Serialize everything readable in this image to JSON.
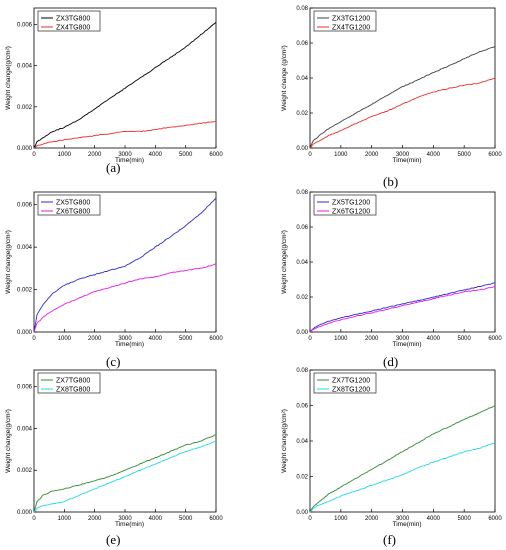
{
  "chart_data": [
    {
      "panel": "(a)",
      "type": "line",
      "xlabel": "Time(min)",
      "ylabel": "Weight change(g/cm²)",
      "xlim": [
        0,
        6000
      ],
      "ylim": [
        0,
        0.0068
      ],
      "xticks": [
        "0",
        "1000",
        "2000",
        "3000",
        "4000",
        "5000",
        "6000"
      ],
      "yticks": [
        0,
        0.002,
        0.004,
        0.006
      ],
      "ytick_labels": [
        "0.000",
        "0.002",
        "0.004",
        "0.006"
      ],
      "legend": "top-left",
      "series": [
        {
          "name": "ZX3TG800",
          "color": "#000000",
          "x": [
            0,
            100,
            300,
            600,
            1000,
            1500,
            2000,
            2500,
            3000,
            3500,
            4000,
            4500,
            5000,
            5500,
            6000
          ],
          "y": [
            0,
            0.0003,
            0.0005,
            0.0008,
            0.001,
            0.0014,
            0.0019,
            0.0024,
            0.0029,
            0.0034,
            0.0039,
            0.0044,
            0.0049,
            0.0055,
            0.0061
          ]
        },
        {
          "name": "ZX4TG800",
          "color": "#e8302c",
          "x": [
            0,
            100,
            300,
            600,
            1000,
            1500,
            2000,
            2500,
            3000,
            3500,
            4000,
            4500,
            5000,
            5500,
            6000
          ],
          "y": [
            0,
            0.0001,
            0.0002,
            0.0003,
            0.0004,
            0.0005,
            0.0006,
            0.0007,
            0.0008,
            0.0008,
            0.0009,
            0.001,
            0.0011,
            0.0012,
            0.0013
          ]
        }
      ]
    },
    {
      "panel": "(b)",
      "type": "line",
      "xlabel": "Time(min)",
      "ylabel": "Weight change (g/cm²)",
      "xlim": [
        0,
        6000
      ],
      "ylim": [
        0,
        0.08
      ],
      "xticks": [
        "0",
        "1000",
        "2000",
        "3000",
        "4000",
        "5000",
        "6000"
      ],
      "yticks": [
        0,
        0.02,
        0.04,
        0.06,
        0.08
      ],
      "ytick_labels": [
        "0.00",
        "0.02",
        "0.04",
        "0.06",
        "0.08"
      ],
      "legend": "top-left",
      "series": [
        {
          "name": "ZX3TG1200",
          "color": "#404040",
          "x": [
            0,
            100,
            300,
            600,
            1000,
            1500,
            2000,
            2500,
            3000,
            3500,
            4000,
            4500,
            5000,
            5500,
            6000
          ],
          "y": [
            0,
            0.004,
            0.007,
            0.011,
            0.015,
            0.02,
            0.025,
            0.03,
            0.035,
            0.039,
            0.043,
            0.047,
            0.051,
            0.055,
            0.058
          ]
        },
        {
          "name": "ZX4TG1200",
          "color": "#e8302c",
          "x": [
            0,
            100,
            300,
            600,
            1000,
            1500,
            2000,
            2500,
            3000,
            3500,
            4000,
            4500,
            5000,
            5500,
            6000
          ],
          "y": [
            0,
            0.002,
            0.004,
            0.007,
            0.01,
            0.014,
            0.018,
            0.021,
            0.025,
            0.029,
            0.032,
            0.034,
            0.036,
            0.037,
            0.04
          ]
        }
      ]
    },
    {
      "panel": "(c)",
      "type": "line",
      "xlabel": "Time(min)",
      "ylabel": "Weight change(g/cm²)",
      "xlim": [
        0,
        6000
      ],
      "ylim": [
        0,
        0.0066
      ],
      "xticks": [
        "0",
        "1000",
        "2000",
        "3000",
        "4000",
        "5000",
        "6000"
      ],
      "yticks": [
        0,
        0.002,
        0.004,
        0.006
      ],
      "ytick_labels": [
        "0.000",
        "0.002",
        "0.004",
        "0.006"
      ],
      "legend": "top-left",
      "series": [
        {
          "name": "ZX5TG800",
          "color": "#2b2bd6",
          "x": [
            0,
            100,
            300,
            600,
            1000,
            1500,
            2000,
            2500,
            3000,
            3500,
            4000,
            4500,
            5000,
            5500,
            6000
          ],
          "y": [
            0,
            0.0008,
            0.0013,
            0.0018,
            0.0022,
            0.0025,
            0.0027,
            0.0029,
            0.0031,
            0.0035,
            0.004,
            0.0045,
            0.005,
            0.0056,
            0.0063
          ]
        },
        {
          "name": "ZX6TG800",
          "color": "#e61ae6",
          "x": [
            0,
            100,
            300,
            600,
            1000,
            1500,
            2000,
            2500,
            3000,
            3500,
            4000,
            4500,
            5000,
            5500,
            6000
          ],
          "y": [
            0,
            0.0004,
            0.0007,
            0.001,
            0.0013,
            0.0016,
            0.0019,
            0.0021,
            0.0023,
            0.0025,
            0.0026,
            0.0028,
            0.0029,
            0.003,
            0.0032
          ]
        }
      ]
    },
    {
      "panel": "(d)",
      "type": "line",
      "xlabel": "Time(min)",
      "ylabel": "Weight change(g/cm²)",
      "xlim": [
        0,
        6000
      ],
      "ylim": [
        0,
        0.08
      ],
      "xticks": [
        "0",
        "1000",
        "2000",
        "3000",
        "4000",
        "5000",
        "6000"
      ],
      "yticks": [
        0,
        0.02,
        0.04,
        0.06,
        0.08
      ],
      "ytick_labels": [
        "0.00",
        "0.02",
        "0.04",
        "0.06",
        "0.08"
      ],
      "legend": "top-left",
      "series": [
        {
          "name": "ZX5TG1200",
          "color": "#2b2bd6",
          "x": [
            0,
            100,
            300,
            600,
            1000,
            1500,
            2000,
            2500,
            3000,
            3500,
            4000,
            4500,
            5000,
            5500,
            6000
          ],
          "y": [
            0,
            0.002,
            0.004,
            0.006,
            0.008,
            0.01,
            0.012,
            0.014,
            0.016,
            0.018,
            0.02,
            0.022,
            0.024,
            0.026,
            0.028
          ]
        },
        {
          "name": "ZX6TG1200",
          "color": "#e61ae6",
          "x": [
            0,
            100,
            300,
            600,
            1000,
            1500,
            2000,
            2500,
            3000,
            3500,
            4000,
            4500,
            5000,
            5500,
            6000
          ],
          "y": [
            0,
            0.0015,
            0.003,
            0.005,
            0.007,
            0.009,
            0.011,
            0.013,
            0.015,
            0.017,
            0.019,
            0.021,
            0.023,
            0.024,
            0.026
          ]
        }
      ]
    },
    {
      "panel": "(e)",
      "type": "line",
      "xlabel": "Time(min)",
      "ylabel": "Weight change(g/cm²)",
      "xlim": [
        0,
        6000
      ],
      "ylim": [
        0,
        0.0068
      ],
      "xticks": [
        "0",
        "1000",
        "2000",
        "3000",
        "4000",
        "5000",
        "6000"
      ],
      "yticks": [
        0,
        0.002,
        0.004,
        0.006
      ],
      "ytick_labels": [
        "0.000",
        "0.002",
        "0.004",
        "0.006"
      ],
      "legend": "top-left",
      "series": [
        {
          "name": "ZX7TG800",
          "color": "#2e8b2e",
          "x": [
            0,
            100,
            300,
            600,
            1000,
            1500,
            2000,
            2500,
            3000,
            3500,
            4000,
            4500,
            5000,
            5500,
            6000
          ],
          "y": [
            0,
            0.0005,
            0.0008,
            0.001,
            0.0011,
            0.0013,
            0.0015,
            0.0017,
            0.002,
            0.0023,
            0.0026,
            0.0029,
            0.0032,
            0.0034,
            0.0037
          ]
        },
        {
          "name": "ZX8TG800",
          "color": "#22d8e8",
          "x": [
            0,
            100,
            300,
            600,
            1000,
            1500,
            2000,
            2500,
            3000,
            3500,
            4000,
            4500,
            5000,
            5500,
            6000
          ],
          "y": [
            0,
            0.0002,
            0.0003,
            0.0004,
            0.0005,
            0.0008,
            0.0011,
            0.0014,
            0.0017,
            0.002,
            0.0023,
            0.0026,
            0.0029,
            0.0031,
            0.0034
          ]
        }
      ]
    },
    {
      "panel": "(f)",
      "type": "line",
      "xlabel": "Time(min)",
      "ylabel": "Weight change(g/cm²)",
      "xlim": [
        0,
        6000
      ],
      "ylim": [
        0,
        0.08
      ],
      "xticks": [
        "0",
        "1000",
        "2000",
        "3000",
        "4000",
        "5000",
        "6000"
      ],
      "yticks": [
        0,
        0.02,
        0.04,
        0.06,
        0.08
      ],
      "ytick_labels": [
        "0.00",
        "0.02",
        "0.04",
        "0.06",
        "0.08"
      ],
      "legend": "top-left",
      "series": [
        {
          "name": "ZX7TG1200",
          "color": "#2e8b2e",
          "x": [
            0,
            100,
            300,
            600,
            1000,
            1500,
            2000,
            2500,
            3000,
            3500,
            4000,
            4500,
            5000,
            5500,
            6000
          ],
          "y": [
            0,
            0.003,
            0.006,
            0.01,
            0.014,
            0.019,
            0.024,
            0.029,
            0.034,
            0.039,
            0.044,
            0.048,
            0.052,
            0.056,
            0.06
          ]
        },
        {
          "name": "ZX8TG1200",
          "color": "#22d8e8",
          "x": [
            0,
            100,
            300,
            600,
            1000,
            1500,
            2000,
            2500,
            3000,
            3500,
            4000,
            4500,
            5000,
            5500,
            6000
          ],
          "y": [
            0,
            0.002,
            0.004,
            0.006,
            0.009,
            0.012,
            0.015,
            0.018,
            0.021,
            0.025,
            0.028,
            0.031,
            0.034,
            0.036,
            0.039
          ]
        }
      ]
    }
  ]
}
